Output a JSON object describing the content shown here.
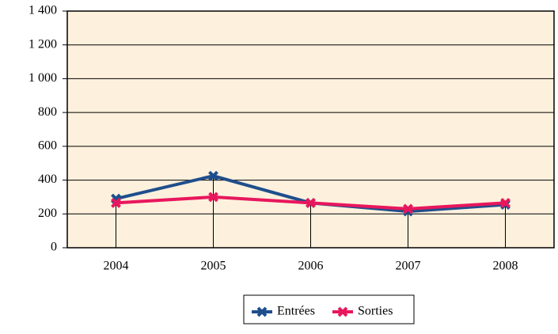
{
  "chart_data": {
    "type": "line",
    "categories": [
      "2004",
      "2005",
      "2006",
      "2007",
      "2008"
    ],
    "series": [
      {
        "name": "Entrées",
        "color": "#1f4e8c",
        "values": [
          290,
          425,
          265,
          215,
          255
        ]
      },
      {
        "name": "Sorties",
        "color": "#e8175d",
        "values": [
          265,
          300,
          265,
          230,
          265
        ]
      }
    ],
    "ylim": [
      0,
      1400
    ],
    "yticks": [
      0,
      200,
      400,
      600,
      800,
      {
        "value": 1000,
        "label": "1 000"
      },
      {
        "value": 1200,
        "label": "1 200"
      },
      {
        "value": 1400,
        "label": "1 400"
      }
    ],
    "grid": true,
    "legend": "bottom"
  }
}
